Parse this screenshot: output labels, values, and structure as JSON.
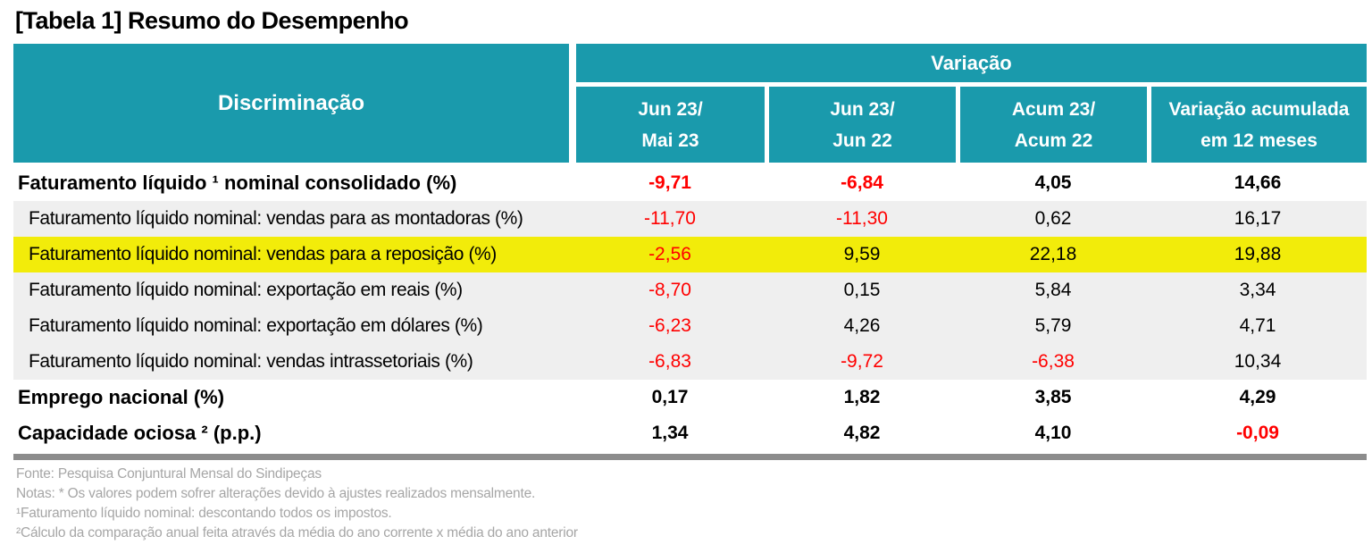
{
  "title": "[Tabela 1] Resumo do Desempenho",
  "colors": {
    "header_teal": "#1A9AAC",
    "highlight_yellow": "#F2EC0A",
    "subrow_gray": "#EFEFEF",
    "negative_red": "#FF0000",
    "notes_gray": "#A6A6A6",
    "bottom_bar_gray": "#8C8C8C"
  },
  "table": {
    "discrimination_header": "Discriminação",
    "variation_header": "Variação",
    "columns": [
      {
        "line1": "Jun 23/",
        "line2": "Mai 23"
      },
      {
        "line1": "Jun 23/",
        "line2": "Jun 22"
      },
      {
        "line1": "Acum 23/",
        "line2": "Acum 22"
      },
      {
        "line1": "Variação acumulada",
        "line2": "em 12 meses"
      }
    ],
    "rows": [
      {
        "label": "Faturamento líquido ¹ nominal consolidado (%)",
        "style": "main",
        "values": [
          "-9,71",
          "-6,84",
          "4,05",
          "14,66"
        ]
      },
      {
        "label": "Faturamento líquido nominal: vendas para as montadoras (%)",
        "style": "sub",
        "values": [
          "-11,70",
          "-11,30",
          "0,62",
          "16,17"
        ]
      },
      {
        "label": "Faturamento líquido nominal: vendas para a reposição (%)",
        "style": "highlight",
        "values": [
          "-2,56",
          "9,59",
          "22,18",
          "19,88"
        ]
      },
      {
        "label": "Faturamento líquido nominal: exportação em reais (%)",
        "style": "sub",
        "values": [
          "-8,70",
          "0,15",
          "5,84",
          "3,34"
        ]
      },
      {
        "label": "Faturamento líquido nominal: exportação em dólares (%)",
        "style": "sub",
        "values": [
          "-6,23",
          "4,26",
          "5,79",
          "4,71"
        ]
      },
      {
        "label": "Faturamento líquido nominal: vendas intrassetoriais (%)",
        "style": "sub",
        "values": [
          "-6,83",
          "-9,72",
          "-6,38",
          "10,34"
        ]
      },
      {
        "label": "Emprego nacional (%)",
        "style": "main",
        "values": [
          "0,17",
          "1,82",
          "3,85",
          "4,29"
        ]
      },
      {
        "label": "Capacidade ociosa ² (p.p.)",
        "style": "main",
        "values": [
          "1,34",
          "4,82",
          "4,10",
          "-0,09"
        ]
      }
    ]
  },
  "notes": [
    "Fonte: Pesquisa Conjuntural Mensal do Sindipeças",
    "Notas: * Os valores podem sofrer alterações devido à ajustes realizados mensalmente.",
    "¹Faturamento líquido nominal: descontando todos os impostos.",
    "²Cálculo da comparação anual feita através da média do ano corrente x média do ano anterior"
  ],
  "chart_data": {
    "type": "table",
    "title": "[Tabela 1] Resumo do Desempenho",
    "columns": [
      "Discriminação",
      "Jun 23/Mai 23",
      "Jun 23/Jun 22",
      "Acum 23/Acum 22",
      "Variação acumulada em 12 meses"
    ],
    "column_group": "Variação",
    "rows": [
      {
        "label": "Faturamento líquido ¹ nominal consolidado (%)",
        "values": [
          -9.71,
          -6.84,
          4.05,
          14.66
        ]
      },
      {
        "label": "Faturamento líquido nominal: vendas para as montadoras (%)",
        "values": [
          -11.7,
          -11.3,
          0.62,
          16.17
        ]
      },
      {
        "label": "Faturamento líquido nominal: vendas para a reposição (%)",
        "values": [
          -2.56,
          9.59,
          22.18,
          19.88
        ],
        "highlighted": true
      },
      {
        "label": "Faturamento líquido nominal: exportação em reais (%)",
        "values": [
          -8.7,
          0.15,
          5.84,
          3.34
        ]
      },
      {
        "label": "Faturamento líquido nominal: exportação em dólares (%)",
        "values": [
          -6.23,
          4.26,
          5.79,
          4.71
        ]
      },
      {
        "label": "Faturamento líquido nominal: vendas intrassetoriais (%)",
        "values": [
          -6.83,
          -9.72,
          -6.38,
          10.34
        ]
      },
      {
        "label": "Emprego nacional (%)",
        "values": [
          0.17,
          1.82,
          3.85,
          4.29
        ]
      },
      {
        "label": "Capacidade ociosa ² (p.p.)",
        "values": [
          1.34,
          4.82,
          4.1,
          -0.09
        ]
      }
    ]
  }
}
